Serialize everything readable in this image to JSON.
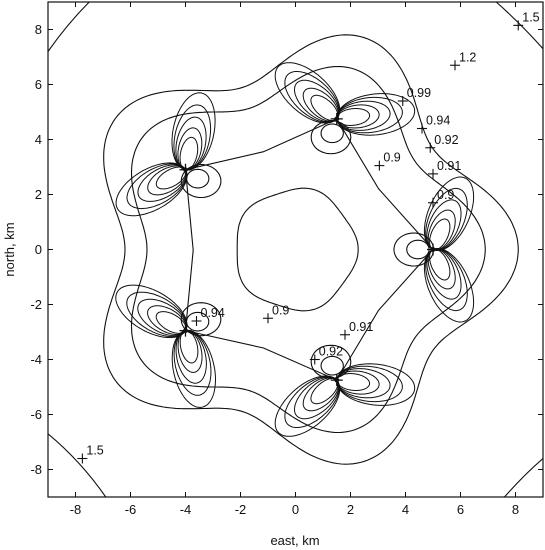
{
  "chart_data": {
    "type": "contour",
    "xlabel": "east, km",
    "ylabel": "north, km",
    "xlim": [
      -9,
      9
    ],
    "ylim": [
      -9,
      9
    ],
    "xticks": [
      -8,
      -6,
      -4,
      -2,
      0,
      2,
      4,
      6,
      8
    ],
    "yticks": [
      -8,
      -6,
      -4,
      -2,
      0,
      2,
      4,
      6,
      8
    ],
    "grid": false,
    "line_color": "#111111",
    "receiver_ring_radius_km": 5.0,
    "receivers": [
      {
        "x": 1.5,
        "y": 4.75
      },
      {
        "x": -4.0,
        "y": 2.9
      },
      {
        "x": -4.0,
        "y": -2.95
      },
      {
        "x": 1.5,
        "y": -4.75
      },
      {
        "x": 5.0,
        "y": 0.0
      }
    ],
    "contour_levels": [
      0.9,
      0.91,
      0.92,
      0.94,
      0.99,
      1.2,
      1.5
    ],
    "contour_labels": [
      {
        "text": "1.5",
        "x": 8.1,
        "y": 8.15
      },
      {
        "text": "1.2",
        "x": 5.8,
        "y": 6.7
      },
      {
        "text": "0.99",
        "x": 3.9,
        "y": 5.4
      },
      {
        "text": "0.94",
        "x": 4.6,
        "y": 4.4
      },
      {
        "text": "0.92",
        "x": 4.9,
        "y": 3.7
      },
      {
        "text": "0.91",
        "x": 5.0,
        "y": 2.75
      },
      {
        "text": "0.9",
        "x": 5.0,
        "y": 1.7
      },
      {
        "text": "0.9",
        "x": 3.05,
        "y": 3.05
      },
      {
        "text": "0.94",
        "x": -3.6,
        "y": -2.6
      },
      {
        "text": "0.9",
        "x": -1.0,
        "y": -2.5
      },
      {
        "text": "0.91",
        "x": 1.8,
        "y": -3.1
      },
      {
        "text": "0.92",
        "x": 0.7,
        "y": -4.0
      },
      {
        "text": "1.5",
        "x": -7.75,
        "y": -7.6
      }
    ]
  }
}
